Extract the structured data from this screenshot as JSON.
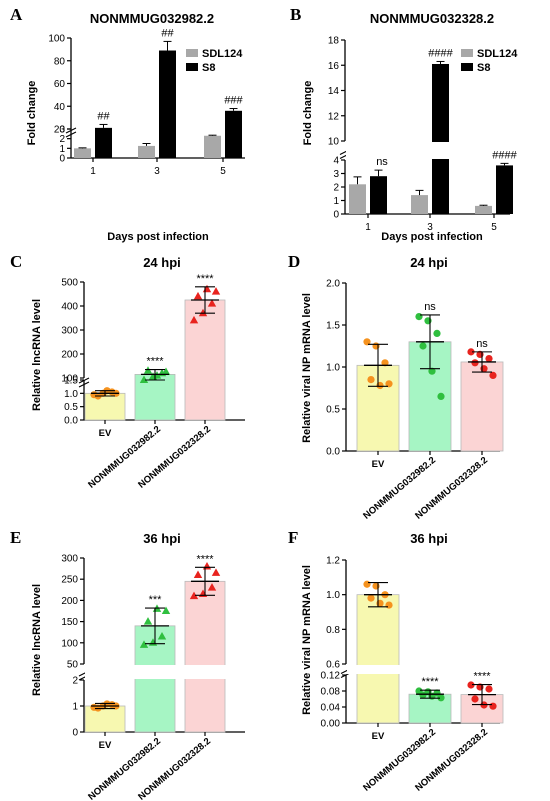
{
  "chart_data": [
    {
      "panel": "A",
      "type": "bar",
      "title": "NONMMUG032982.2",
      "xlabel": "Days post infection",
      "ylabel": "Fold change",
      "categories": [
        "1",
        "3",
        "5"
      ],
      "series": [
        {
          "name": "SDL124",
          "color": "#a8a8a8",
          "values": [
            1.0,
            1.25,
            2.3
          ],
          "errors": [
            0.05,
            0.25,
            0.06
          ]
        },
        {
          "name": "S8",
          "color": "#000000",
          "values": [
            21,
            89,
            36
          ],
          "errors": [
            3,
            8,
            2
          ]
        }
      ],
      "y_segments": [
        {
          "range": [
            0,
            3
          ],
          "ticks": [
            0,
            1,
            2,
            3
          ]
        },
        {
          "range": [
            20,
            100
          ],
          "ticks": [
            20,
            40,
            60,
            80,
            100
          ]
        }
      ],
      "annotations": [
        "##",
        "##",
        "###"
      ],
      "legend": "top-right"
    },
    {
      "panel": "B",
      "type": "bar",
      "title": "NONMMUG032328.2",
      "xlabel": "Days post infection",
      "ylabel": "Fold change",
      "categories": [
        "1",
        "3",
        "5"
      ],
      "series": [
        {
          "name": "SDL124",
          "color": "#a8a8a8",
          "values": [
            2.2,
            1.4,
            0.6
          ],
          "errors": [
            0.55,
            0.35,
            0.05
          ]
        },
        {
          "name": "S8",
          "color": "#000000",
          "values": [
            2.8,
            16.1,
            3.6
          ],
          "errors": [
            0.45,
            0.2,
            0.15
          ]
        }
      ],
      "y_segments": [
        {
          "range": [
            0,
            4
          ],
          "ticks": [
            0,
            1,
            2,
            3,
            4
          ]
        },
        {
          "range": [
            10,
            18
          ],
          "ticks": [
            10,
            12,
            14,
            16,
            18
          ]
        }
      ],
      "annotations": [
        "ns",
        "####",
        "####"
      ],
      "legend": "top-right"
    },
    {
      "panel": "C",
      "type": "bar",
      "title": "24 hpi",
      "xlabel": "",
      "ylabel": "Relative lncRNA level",
      "categories": [
        "EV",
        "NONMMUG032982.2",
        "NONMMUG032328.2"
      ],
      "values": [
        1.0,
        115,
        425
      ],
      "errors": [
        0.1,
        20,
        55
      ],
      "colors": [
        "#f7f8b0",
        "#a6f5c4",
        "#fbd4d4"
      ],
      "marker_colors": [
        "#f5921e",
        "#2fbf3f",
        "#e8231e"
      ],
      "points": [
        [
          0.95,
          1.0,
          1.05,
          0.9,
          1.1,
          1.0
        ],
        [
          95,
          105,
          120,
          130,
          110,
          125
        ],
        [
          340,
          370,
          410,
          440,
          470,
          460
        ]
      ],
      "y_segments": [
        {
          "range": [
            0,
            1.5
          ],
          "ticks": [
            0,
            0.5,
            1.0,
            1.5
          ]
        },
        {
          "range": [
            100,
            500
          ],
          "ticks": [
            100,
            200,
            300,
            400,
            500
          ]
        }
      ],
      "annotations": [
        "",
        "****",
        "****"
      ]
    },
    {
      "panel": "D",
      "type": "bar",
      "title": "24 hpi",
      "xlabel": "",
      "ylabel": "Relative viral NP mRNA level",
      "categories": [
        "EV",
        "NONMMUG032982.2",
        "NONMMUG032328.2"
      ],
      "values": [
        1.02,
        1.3,
        1.06
      ],
      "errors": [
        0.25,
        0.32,
        0.12
      ],
      "colors": [
        "#f7f8b0",
        "#a6f5c4",
        "#fbd4d4"
      ],
      "marker_colors": [
        "#f5921e",
        "#2fbf3f",
        "#e8231e"
      ],
      "points": [
        [
          1.3,
          1.25,
          1.05,
          0.85,
          0.78,
          0.8
        ],
        [
          1.6,
          1.55,
          1.4,
          1.25,
          0.95,
          0.65
        ],
        [
          1.18,
          1.15,
          1.1,
          1.05,
          0.98,
          0.9
        ]
      ],
      "ylim": [
        0,
        2.0
      ],
      "yticks": [
        0.0,
        0.5,
        1.0,
        1.5,
        2.0
      ],
      "annotations": [
        "",
        "ns",
        "ns"
      ]
    },
    {
      "panel": "E",
      "type": "bar",
      "title": "36 hpi",
      "xlabel": "",
      "ylabel": "Relative lncRNA level",
      "categories": [
        "EV",
        "NONMMUG032982.2",
        "NONMMUG032328.2"
      ],
      "values": [
        1.0,
        140,
        245
      ],
      "errors": [
        0.1,
        42,
        33
      ],
      "colors": [
        "#f7f8b0",
        "#a6f5c4",
        "#fbd4d4"
      ],
      "marker_colors": [
        "#f5921e",
        "#2fbf3f",
        "#e8231e"
      ],
      "points": [
        [
          0.95,
          1.0,
          1.05,
          0.92,
          1.08,
          1.0
        ],
        [
          95,
          100,
          115,
          150,
          180,
          175
        ],
        [
          210,
          215,
          230,
          260,
          280,
          265
        ]
      ],
      "y_segments": [
        {
          "range": [
            0,
            2
          ],
          "ticks": [
            0,
            1,
            2
          ]
        },
        {
          "range": [
            50,
            300
          ],
          "ticks": [
            50,
            100,
            150,
            200,
            250,
            300
          ]
        }
      ],
      "annotations": [
        "",
        "***",
        "****"
      ]
    },
    {
      "panel": "F",
      "type": "bar",
      "title": "36 hpi",
      "xlabel": "",
      "ylabel": "Relative viral NP mRNA level",
      "categories": [
        "EV",
        "NONMMUG032982.2",
        "NONMMUG032328.2"
      ],
      "values": [
        1.0,
        0.072,
        0.071
      ],
      "errors": [
        0.07,
        0.01,
        0.025
      ],
      "colors": [
        "#f7f8b0",
        "#a6f5c4",
        "#fbd4d4"
      ],
      "marker_colors": [
        "#f5921e",
        "#2fbf3f",
        "#e8231e"
      ],
      "points": [
        [
          1.06,
          1.05,
          1.0,
          0.98,
          0.95,
          0.94
        ],
        [
          0.08,
          0.078,
          0.075,
          0.07,
          0.067,
          0.063
        ],
        [
          0.095,
          0.09,
          0.085,
          0.06,
          0.045,
          0.042
        ]
      ],
      "y_segments": [
        {
          "range": [
            0,
            0.12
          ],
          "ticks": [
            0.0,
            0.04,
            0.08,
            0.12
          ]
        },
        {
          "range": [
            0.6,
            1.2
          ],
          "ticks": [
            0.6,
            0.8,
            1.0,
            1.2
          ]
        }
      ],
      "annotations": [
        "",
        "****",
        "****"
      ]
    }
  ]
}
